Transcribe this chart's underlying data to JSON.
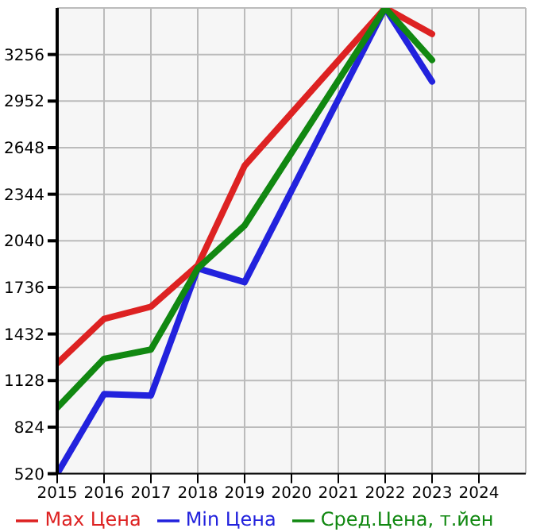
{
  "chart_data": {
    "type": "line",
    "x": [
      2015,
      2016,
      2017,
      2018,
      2019,
      2022,
      2023
    ],
    "series": [
      {
        "name": "Max Цена",
        "color": "#dd2222",
        "values": [
          1240,
          1530,
          1610,
          1880,
          2530,
          3560,
          3390
        ]
      },
      {
        "name": "Min Цена",
        "color": "#2222dd",
        "values": [
          520,
          1040,
          1030,
          1860,
          1770,
          3560,
          3080
        ]
      },
      {
        "name": "Сред.Цена, т.йен",
        "color": "#118811",
        "values": [
          950,
          1270,
          1330,
          1860,
          2140,
          3560,
          3220
        ]
      }
    ],
    "xlim": [
      2015,
      2025
    ],
    "xticks": [
      2015,
      2016,
      2017,
      2018,
      2019,
      2020,
      2021,
      2022,
      2023,
      2024
    ],
    "ylim": [
      520,
      3560
    ],
    "yticks": [
      520,
      824,
      1128,
      1432,
      1736,
      2040,
      2344,
      2648,
      2952,
      3256
    ],
    "grid": true,
    "legend": "bottom",
    "marker": "none",
    "line_style": "solid"
  }
}
